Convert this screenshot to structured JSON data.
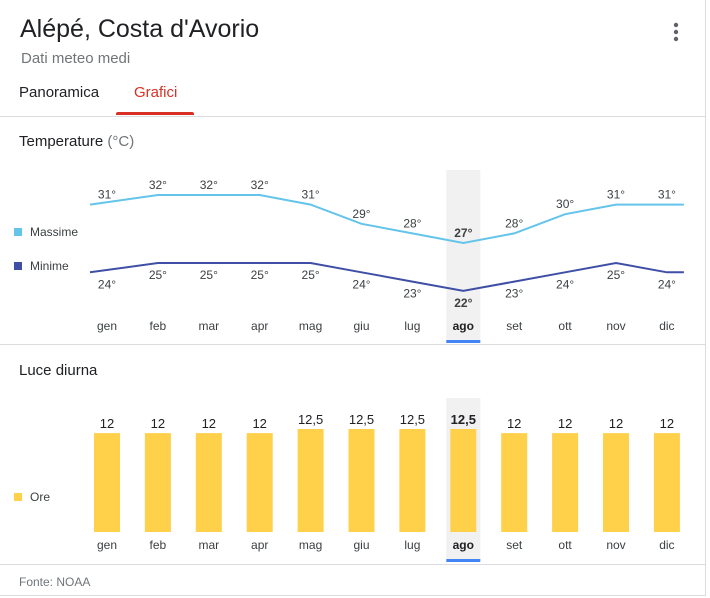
{
  "header": {
    "title": "Alépé, Costa d'Avorio",
    "subtitle": "Dati meteo medi",
    "menu_icon": "more-vert-icon"
  },
  "tabs": [
    {
      "label": "Panoramica",
      "active": false
    },
    {
      "label": "Grafici",
      "active": true
    }
  ],
  "colors": {
    "max_line": "#64c4e9",
    "min_line": "#3f4fa6",
    "bar": "#ffd04a",
    "selected": "#4385f4",
    "active_tab": "#d93025"
  },
  "selected_month_index": 7,
  "chart_data": [
    {
      "type": "line",
      "title": "Temperature",
      "unit_label": "(°C)",
      "categories": [
        "gen",
        "feb",
        "mar",
        "apr",
        "mag",
        "giu",
        "lug",
        "ago",
        "set",
        "ott",
        "nov",
        "dic"
      ],
      "series": [
        {
          "name": "Massime",
          "values": [
            31,
            32,
            32,
            32,
            31,
            29,
            28,
            27,
            28,
            30,
            31,
            31
          ],
          "labels": [
            "31°",
            "32°",
            "32°",
            "32°",
            "31°",
            "29°",
            "28°",
            "27°",
            "28°",
            "30°",
            "31°",
            "31°"
          ]
        },
        {
          "name": "Minime",
          "values": [
            24,
            25,
            25,
            25,
            25,
            24,
            23,
            22,
            23,
            24,
            25,
            24
          ],
          "labels": [
            "24°",
            "25°",
            "25°",
            "25°",
            "25°",
            "24°",
            "23°",
            "22°",
            "23°",
            "24°",
            "25°",
            "24°"
          ]
        }
      ]
    },
    {
      "type": "bar",
      "title": "Luce diurna",
      "categories": [
        "gen",
        "feb",
        "mar",
        "apr",
        "mag",
        "giu",
        "lug",
        "ago",
        "set",
        "ott",
        "nov",
        "dic"
      ],
      "series": [
        {
          "name": "Ore",
          "values": [
            12,
            12,
            12,
            12,
            12.5,
            12.5,
            12.5,
            12.5,
            12,
            12,
            12,
            12
          ],
          "labels": [
            "12",
            "12",
            "12",
            "12",
            "12,5",
            "12,5",
            "12,5",
            "12,5",
            "12",
            "12",
            "12",
            "12"
          ]
        }
      ]
    }
  ],
  "footer": "Fonte: NOAA"
}
